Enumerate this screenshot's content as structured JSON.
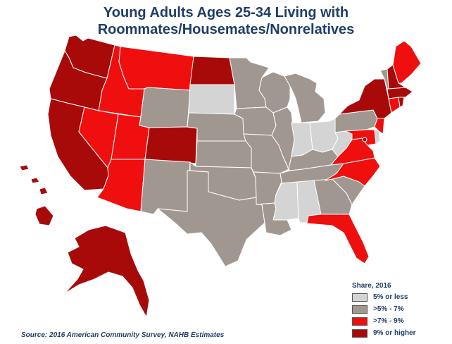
{
  "title": {
    "line1": "Young Adults Ages 25-34 Living with",
    "line2": "Roommates/Housemates/Nonrelatives"
  },
  "legend": {
    "title": "Share, 2016",
    "items": [
      {
        "label": "5% or less",
        "color": "#d4d4d4"
      },
      {
        "label": ">5% - 7%",
        "color": "#a09890"
      },
      {
        "label": ">7% - 9%",
        "color": "#ef0f0f"
      },
      {
        "label": "9% or higher",
        "color": "#a80a0a"
      }
    ]
  },
  "source": "Source: 2016 American Community Survey, NAHB Estimates",
  "states": [
    {
      "abbr": "WA",
      "cat": 3
    },
    {
      "abbr": "OR",
      "cat": 3
    },
    {
      "abbr": "CA",
      "cat": 3
    },
    {
      "abbr": "ID",
      "cat": 2
    },
    {
      "abbr": "NV",
      "cat": 2
    },
    {
      "abbr": "UT",
      "cat": 2
    },
    {
      "abbr": "AZ",
      "cat": 2
    },
    {
      "abbr": "MT",
      "cat": 2
    },
    {
      "abbr": "CO",
      "cat": 3
    },
    {
      "abbr": "ND",
      "cat": 3
    },
    {
      "abbr": "SD",
      "cat": 0
    },
    {
      "abbr": "WY",
      "cat": 1
    },
    {
      "abbr": "NM",
      "cat": 1
    },
    {
      "abbr": "NE",
      "cat": 1
    },
    {
      "abbr": "KS",
      "cat": 1
    },
    {
      "abbr": "OK",
      "cat": 1
    },
    {
      "abbr": "TX",
      "cat": 1
    },
    {
      "abbr": "MN",
      "cat": 1
    },
    {
      "abbr": "IA",
      "cat": 1
    },
    {
      "abbr": "MO",
      "cat": 1
    },
    {
      "abbr": "AR",
      "cat": 1
    },
    {
      "abbr": "LA",
      "cat": 1
    },
    {
      "abbr": "WI",
      "cat": 1
    },
    {
      "abbr": "IL",
      "cat": 1
    },
    {
      "abbr": "MI",
      "cat": 1
    },
    {
      "abbr": "IN",
      "cat": 0
    },
    {
      "abbr": "OH",
      "cat": 0
    },
    {
      "abbr": "KY",
      "cat": 1
    },
    {
      "abbr": "TN",
      "cat": 1
    },
    {
      "abbr": "MS",
      "cat": 0
    },
    {
      "abbr": "AL",
      "cat": 0
    },
    {
      "abbr": "GA",
      "cat": 1
    },
    {
      "abbr": "FL",
      "cat": 2
    },
    {
      "abbr": "SC",
      "cat": 1
    },
    {
      "abbr": "NC",
      "cat": 2
    },
    {
      "abbr": "VA",
      "cat": 2
    },
    {
      "abbr": "WV",
      "cat": 0
    },
    {
      "abbr": "PA",
      "cat": 1
    },
    {
      "abbr": "NY",
      "cat": 3
    },
    {
      "abbr": "ME",
      "cat": 2
    },
    {
      "abbr": "VT",
      "cat": 1
    },
    {
      "abbr": "NH",
      "cat": 3
    },
    {
      "abbr": "MA",
      "cat": 3
    },
    {
      "abbr": "RI",
      "cat": 3
    },
    {
      "abbr": "CT",
      "cat": 2
    },
    {
      "abbr": "NJ",
      "cat": 2
    },
    {
      "abbr": "DE",
      "cat": 0
    },
    {
      "abbr": "MD",
      "cat": 2
    },
    {
      "abbr": "DC",
      "cat": 3
    },
    {
      "abbr": "AK",
      "cat": 3
    },
    {
      "abbr": "HI",
      "cat": 3
    }
  ]
}
